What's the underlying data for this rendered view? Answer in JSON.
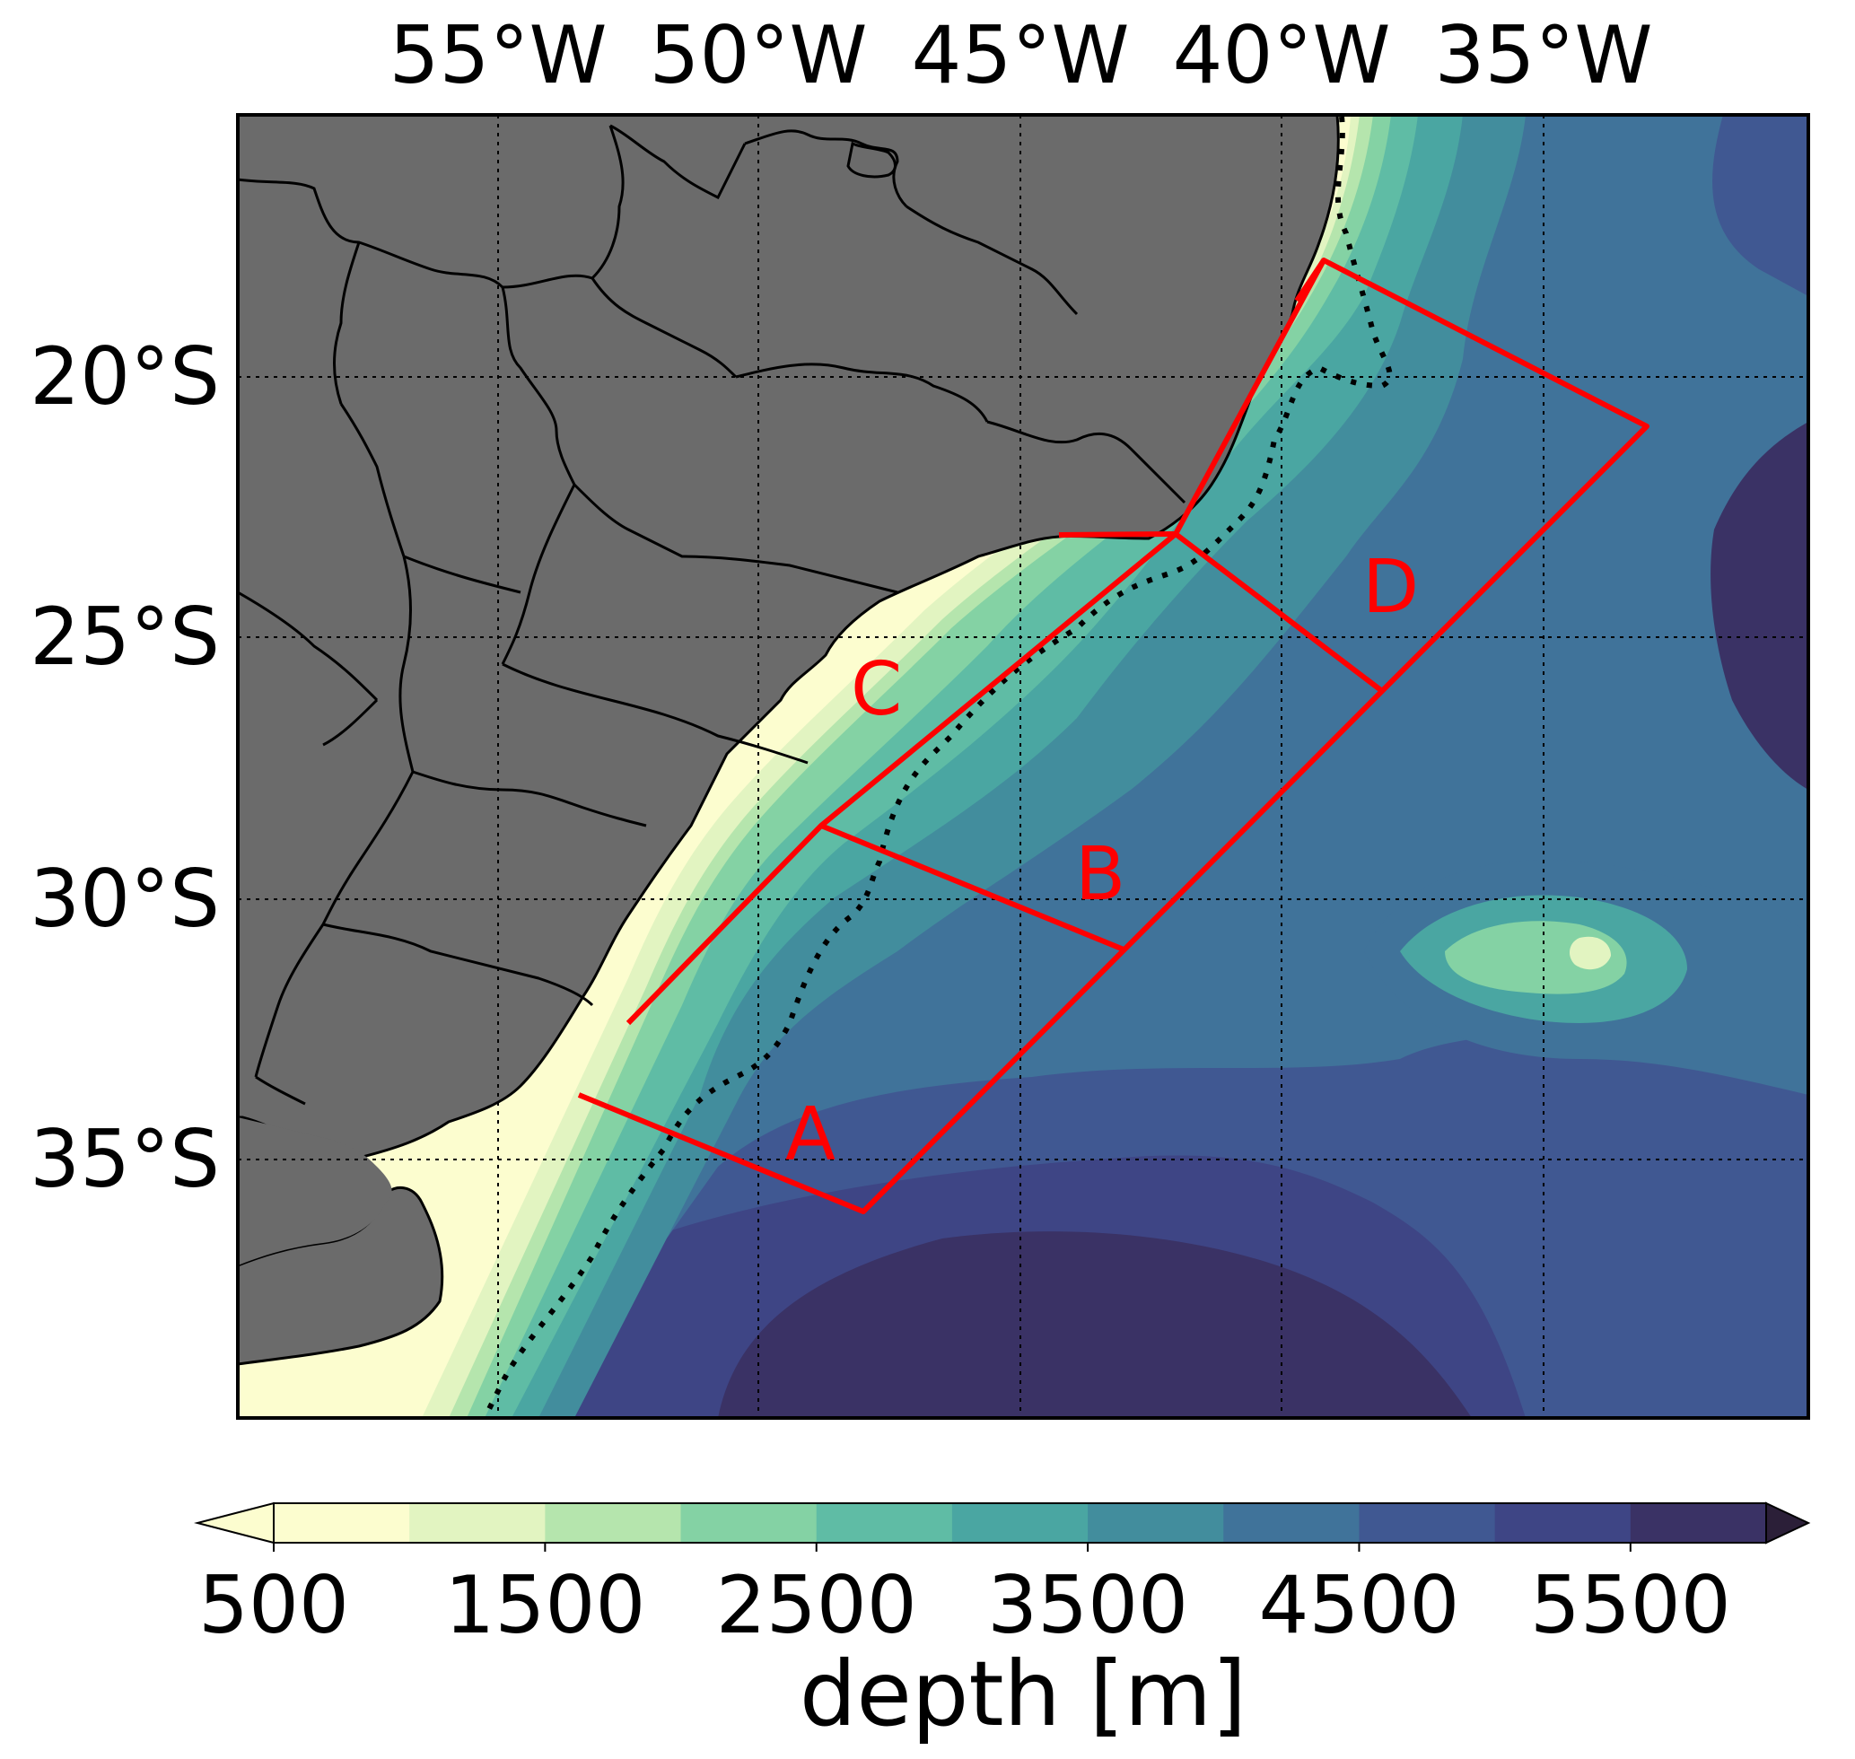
{
  "map": {
    "top_axis_labels": [
      "55°W",
      "50°W",
      "45°W",
      "40°W",
      "35°W"
    ],
    "left_axis_labels": [
      "20°S",
      "25°S",
      "30°S",
      "35°S"
    ],
    "regions": [
      {
        "label": "A"
      },
      {
        "label": "B"
      },
      {
        "label": "C"
      },
      {
        "label": "D"
      }
    ],
    "colors": {
      "land": "#6b6b6b",
      "coast": "#000000",
      "region_outline": "#ff0000",
      "gridline": "#000000"
    }
  },
  "colorbar": {
    "title": "depth [m]",
    "tick_labels": [
      "500",
      "1500",
      "2500",
      "3500",
      "4500",
      "5500"
    ],
    "levels": [
      500,
      1000,
      1500,
      2000,
      2500,
      3000,
      3500,
      4000,
      4500,
      5000,
      5500
    ],
    "colors": [
      "#fcfdcf",
      "#e2f4c1",
      "#b5e5ad",
      "#84d2a4",
      "#5fbca5",
      "#4aa6a2",
      "#428d9d",
      "#40739a",
      "#405892",
      "#3e4585",
      "#3a3265",
      "#2b1f38"
    ]
  }
}
